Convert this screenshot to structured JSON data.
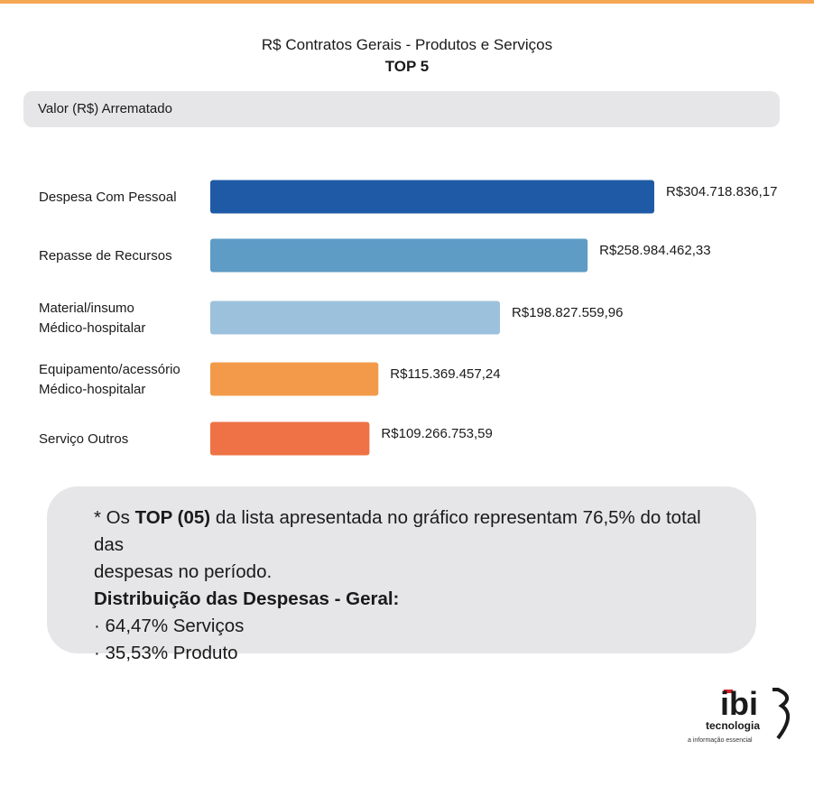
{
  "colors": {
    "accent_top": "#f5a653"
  },
  "header": {
    "title": "R$ Contratos Gerais - Produtos e Serviços",
    "subtitle": "TOP 5"
  },
  "metric_label": "Valor (R$) Arrematado",
  "chart_data": {
    "type": "bar",
    "orientation": "horizontal",
    "title": "R$ Contratos Gerais - Produtos e Serviços",
    "subtitle": "TOP 5",
    "xlabel": "Valor (R$) Arrematado",
    "categories": [
      [
        "Despesa Com Pessoal"
      ],
      [
        "Repasse de Recursos"
      ],
      [
        "Material/insumo",
        "Médico-hospitalar"
      ],
      [
        "Equipamento/acessório",
        "Médico-hospitalar"
      ],
      [
        "Serviço Outros"
      ]
    ],
    "values": [
      304718836.17,
      258984462.33,
      198827559.96,
      115369457.24,
      109266753.59
    ],
    "value_labels": [
      "R$304.718.836,17",
      "R$258.984.462,33",
      "R$198.827.559,96",
      "R$115.369.457,24",
      "R$109.266.753,59"
    ],
    "colors": [
      "#1f5aa6",
      "#5e9bc5",
      "#9cc1dc",
      "#f29a4a",
      "#ee7245"
    ],
    "grid": false,
    "legend": "none"
  },
  "note": {
    "line1_prefix": "* Os ",
    "line1_bold": "TOP (05)",
    "line1_suffix": " da lista apresentada no gráfico representam 76,5% do total das",
    "line2": "despesas no período.",
    "heading": "Distribuição das Despesas - Geral:",
    "items": [
      "·  64,47% Serviços",
      "·  35,53% Produto"
    ]
  },
  "logo": {
    "brand": "ibi",
    "name": "tecnologia",
    "tagline": "a informação essencial",
    "accent": "#d2232a"
  }
}
